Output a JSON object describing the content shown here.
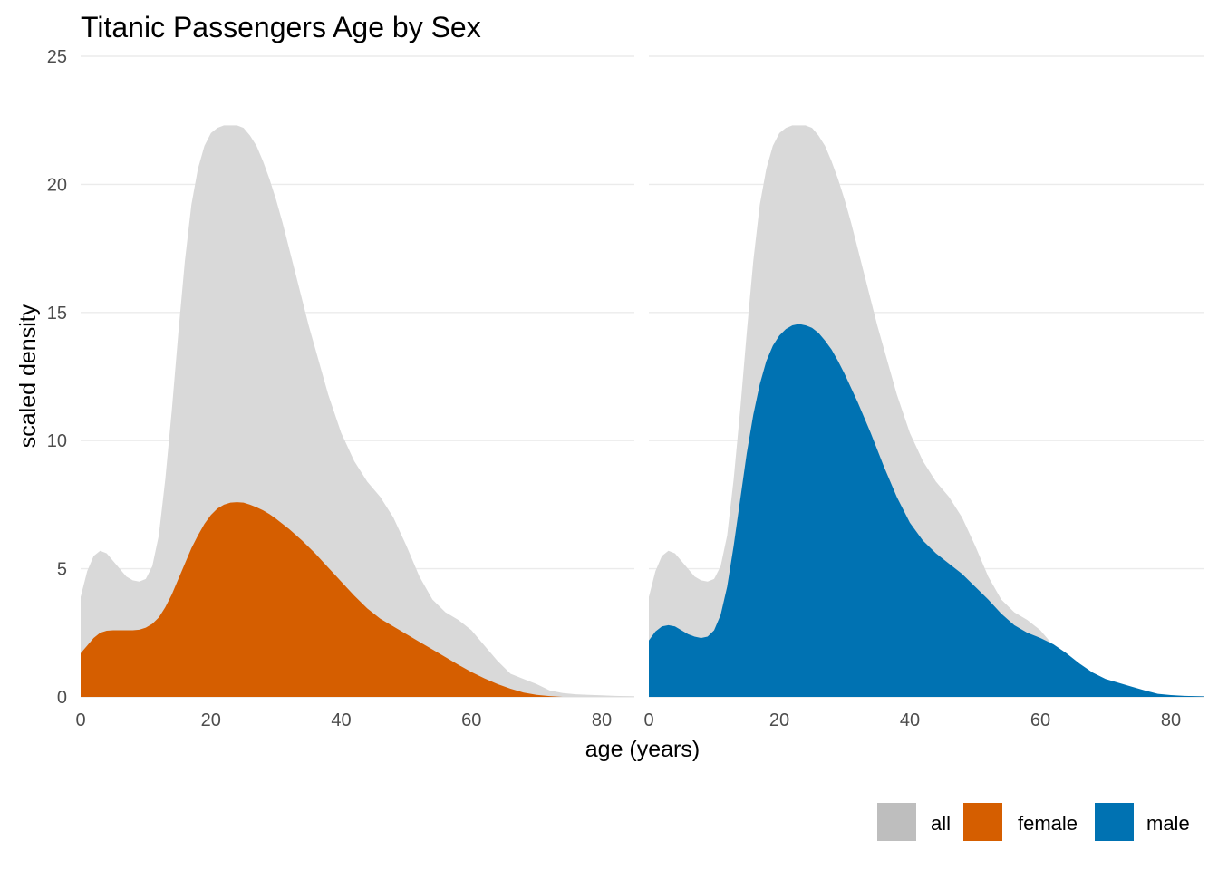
{
  "chart_data": {
    "type": "area",
    "title": "Titanic Passengers Age by Sex",
    "xlabel": "age (years)",
    "ylabel": "scaled density",
    "xlim": [
      0,
      85
    ],
    "ylim": [
      0,
      25
    ],
    "x_ticks": [
      "0",
      "20",
      "40",
      "60",
      "80"
    ],
    "y_ticks": [
      "0",
      "5",
      "10",
      "15",
      "20",
      "25"
    ],
    "grid": true,
    "legend": {
      "position": "bottom-right",
      "entries": [
        {
          "label": "all",
          "color": "#bebebe"
        },
        {
          "label": "female",
          "color": "#d55e00"
        },
        {
          "label": "male",
          "color": "#0072b2"
        }
      ]
    },
    "background_series": {
      "name": "all",
      "color": "#d9d9d9",
      "x": [
        0,
        1,
        2,
        3,
        4,
        5,
        6,
        7,
        8,
        9,
        10,
        11,
        12,
        13,
        14,
        15,
        16,
        17,
        18,
        19,
        20,
        21,
        22,
        23,
        24,
        25,
        26,
        27,
        28,
        29,
        30,
        31,
        32,
        33,
        34,
        35,
        36,
        38,
        40,
        42,
        44,
        46,
        48,
        50,
        52,
        54,
        56,
        58,
        60,
        62,
        64,
        66,
        68,
        70,
        72,
        74,
        76,
        78,
        80,
        82,
        85
      ],
      "y": [
        3.9,
        4.9,
        5.5,
        5.7,
        5.6,
        5.3,
        5.0,
        4.7,
        4.55,
        4.5,
        4.6,
        5.1,
        6.3,
        8.5,
        11.2,
        14.2,
        17.0,
        19.2,
        20.6,
        21.5,
        22.0,
        22.2,
        22.3,
        22.3,
        22.3,
        22.2,
        21.9,
        21.5,
        20.9,
        20.2,
        19.4,
        18.5,
        17.5,
        16.5,
        15.5,
        14.5,
        13.6,
        11.8,
        10.3,
        9.2,
        8.4,
        7.8,
        7.0,
        5.9,
        4.7,
        3.8,
        3.3,
        3.0,
        2.6,
        2.0,
        1.4,
        0.9,
        0.7,
        0.5,
        0.25,
        0.15,
        0.1,
        0.08,
        0.06,
        0.04,
        0.02
      ]
    },
    "panels": [
      {
        "name": "female",
        "color": "#d55e00",
        "x": [
          0,
          1,
          2,
          3,
          4,
          5,
          6,
          7,
          8,
          9,
          10,
          11,
          12,
          13,
          14,
          15,
          16,
          17,
          18,
          19,
          20,
          21,
          22,
          23,
          24,
          25,
          26,
          27,
          28,
          29,
          30,
          32,
          34,
          36,
          38,
          40,
          42,
          44,
          46,
          48,
          50,
          52,
          54,
          56,
          58,
          60,
          62,
          64,
          66,
          68,
          70,
          72,
          74
        ],
        "y": [
          1.7,
          2.0,
          2.3,
          2.5,
          2.58,
          2.6,
          2.6,
          2.6,
          2.6,
          2.62,
          2.7,
          2.85,
          3.1,
          3.5,
          4.0,
          4.6,
          5.2,
          5.8,
          6.3,
          6.75,
          7.1,
          7.35,
          7.5,
          7.58,
          7.6,
          7.58,
          7.5,
          7.4,
          7.28,
          7.13,
          6.95,
          6.55,
          6.1,
          5.6,
          5.05,
          4.5,
          3.95,
          3.45,
          3.05,
          2.75,
          2.45,
          2.15,
          1.85,
          1.55,
          1.25,
          0.97,
          0.72,
          0.5,
          0.32,
          0.17,
          0.08,
          0.03,
          0.0
        ]
      },
      {
        "name": "male",
        "color": "#0072b2",
        "x": [
          0,
          1,
          2,
          3,
          4,
          5,
          6,
          7,
          8,
          9,
          10,
          11,
          12,
          13,
          14,
          15,
          16,
          17,
          18,
          19,
          20,
          21,
          22,
          23,
          24,
          25,
          26,
          27,
          28,
          29,
          30,
          32,
          34,
          36,
          38,
          40,
          42,
          44,
          46,
          48,
          50,
          52,
          54,
          56,
          58,
          60,
          62,
          64,
          66,
          68,
          70,
          72,
          74,
          76,
          78,
          80,
          82,
          85
        ],
        "y": [
          2.2,
          2.55,
          2.75,
          2.8,
          2.75,
          2.6,
          2.45,
          2.35,
          2.3,
          2.35,
          2.6,
          3.2,
          4.3,
          5.9,
          7.7,
          9.5,
          11.0,
          12.2,
          13.1,
          13.7,
          14.1,
          14.35,
          14.5,
          14.55,
          14.5,
          14.4,
          14.2,
          13.9,
          13.55,
          13.1,
          12.6,
          11.5,
          10.3,
          9.0,
          7.8,
          6.8,
          6.1,
          5.6,
          5.2,
          4.8,
          4.3,
          3.8,
          3.25,
          2.8,
          2.5,
          2.3,
          2.05,
          1.7,
          1.3,
          0.95,
          0.7,
          0.55,
          0.4,
          0.25,
          0.12,
          0.07,
          0.04,
          0.02
        ]
      }
    ]
  }
}
